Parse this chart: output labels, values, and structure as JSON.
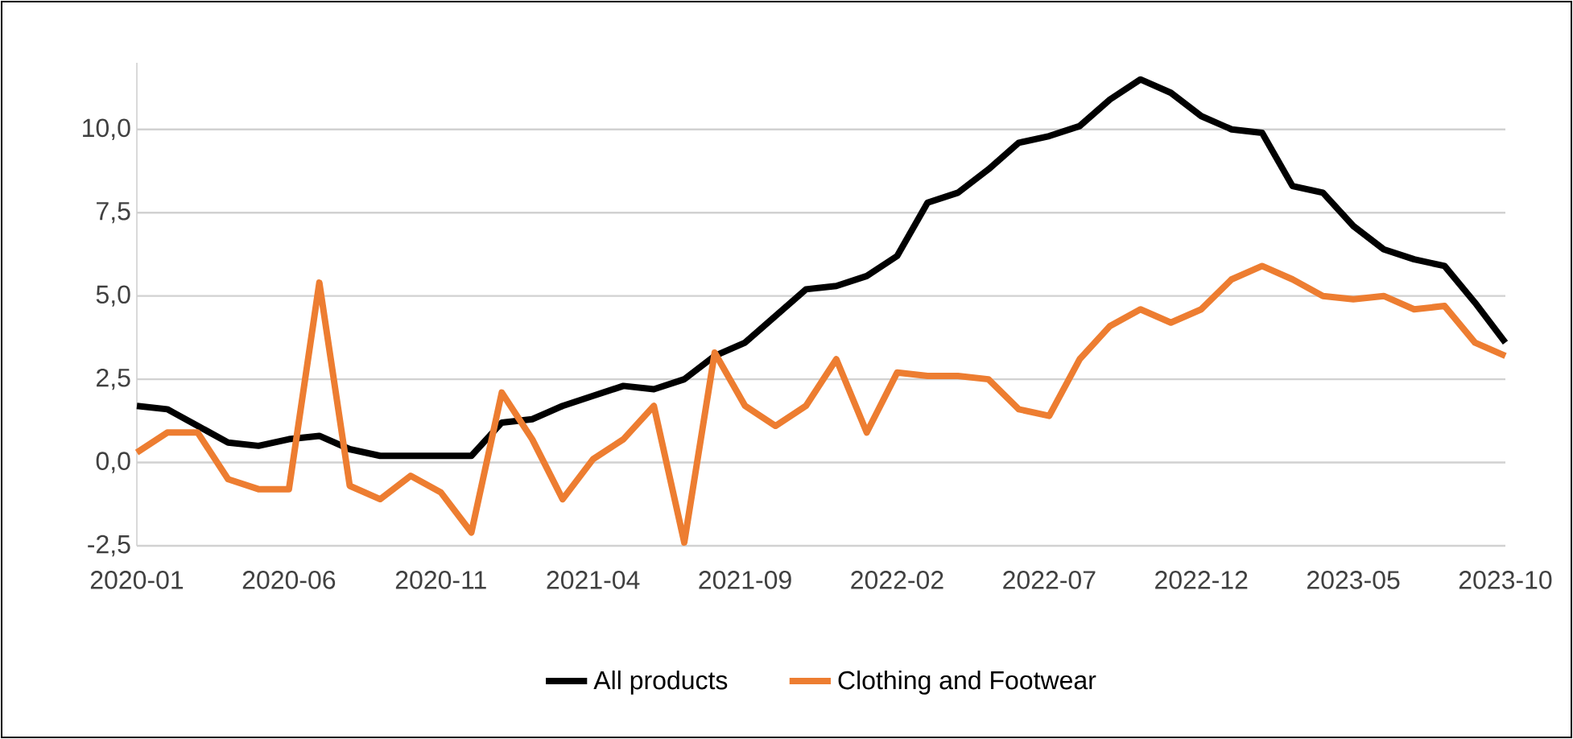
{
  "chart_data": {
    "type": "line",
    "x": [
      "2020-01",
      "2020-02",
      "2020-03",
      "2020-04",
      "2020-05",
      "2020-06",
      "2020-07",
      "2020-08",
      "2020-09",
      "2020-10",
      "2020-11",
      "2020-12",
      "2021-01",
      "2021-02",
      "2021-03",
      "2021-04",
      "2021-05",
      "2021-06",
      "2021-07",
      "2021-08",
      "2021-09",
      "2021-10",
      "2021-11",
      "2021-12",
      "2022-01",
      "2022-02",
      "2022-03",
      "2022-04",
      "2022-05",
      "2022-06",
      "2022-07",
      "2022-08",
      "2022-09",
      "2022-10",
      "2022-11",
      "2022-12",
      "2023-01",
      "2023-02",
      "2023-03",
      "2023-04",
      "2023-05",
      "2023-06",
      "2023-07",
      "2023-08",
      "2023-09",
      "2023-10"
    ],
    "series": [
      {
        "name": "All products",
        "color": "#000000",
        "values": [
          1.7,
          1.6,
          1.1,
          0.6,
          0.5,
          0.7,
          0.8,
          0.4,
          0.2,
          0.2,
          0.2,
          0.2,
          1.2,
          1.3,
          1.7,
          2.0,
          2.3,
          2.2,
          2.5,
          3.2,
          3.6,
          4.4,
          5.2,
          5.3,
          5.6,
          6.2,
          7.8,
          8.1,
          8.8,
          9.6,
          9.8,
          10.1,
          10.9,
          11.5,
          11.1,
          10.4,
          10.0,
          9.9,
          8.3,
          8.1,
          7.1,
          6.4,
          6.1,
          5.9,
          4.8,
          3.6
        ]
      },
      {
        "name": "Clothing and Footwear",
        "color": "#ed7d31",
        "values": [
          0.3,
          0.9,
          0.9,
          -0.5,
          -0.8,
          -0.8,
          5.4,
          -0.7,
          -1.1,
          -0.4,
          -0.9,
          -2.1,
          2.1,
          0.7,
          -1.1,
          0.1,
          0.7,
          1.7,
          -2.4,
          3.3,
          1.7,
          1.1,
          1.7,
          3.1,
          0.9,
          2.7,
          2.6,
          2.6,
          2.5,
          1.6,
          1.4,
          3.1,
          4.1,
          4.6,
          4.2,
          4.6,
          5.5,
          5.9,
          5.5,
          5.0,
          4.9,
          5.0,
          4.6,
          4.7,
          3.6,
          3.2
        ]
      }
    ],
    "xlim": [
      "2020-01",
      "2023-10"
    ],
    "xticks": [
      "2020-01",
      "2020-06",
      "2020-11",
      "2021-04",
      "2021-09",
      "2022-02",
      "2022-07",
      "2022-12",
      "2023-05",
      "2023-10"
    ],
    "ylim": [
      -2.5,
      12
    ],
    "yticks": [
      {
        "value": -2.5,
        "label": "-2,5"
      },
      {
        "value": 0,
        "label": "0,0"
      },
      {
        "value": 2.5,
        "label": "2,5"
      },
      {
        "value": 5,
        "label": "5,0"
      },
      {
        "value": 7.5,
        "label": "7,5"
      },
      {
        "value": 10,
        "label": "10,0"
      }
    ],
    "grid": "y",
    "legend": "bottom",
    "marker": "none",
    "line_style": "solid"
  }
}
